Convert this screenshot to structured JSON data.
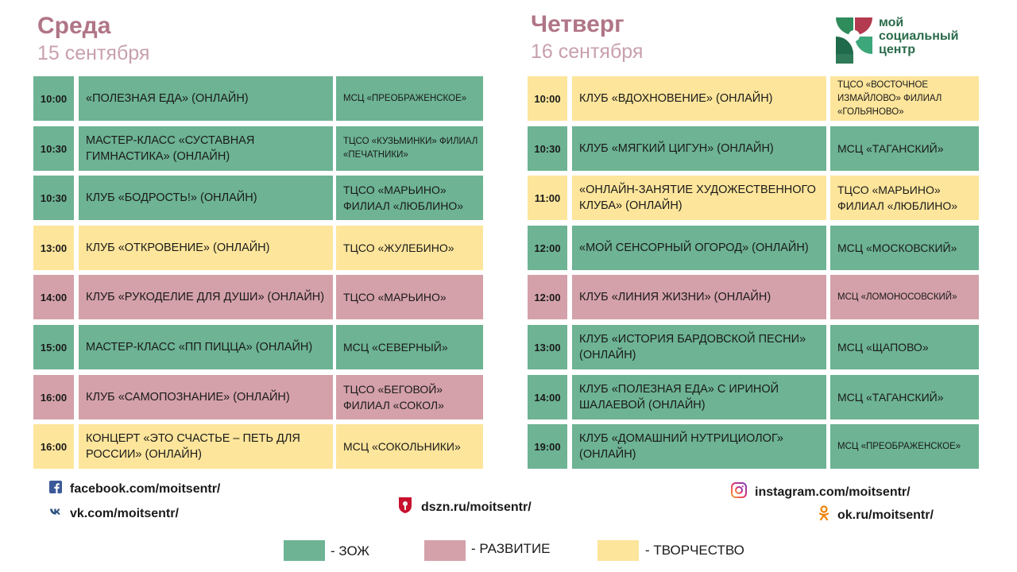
{
  "logo": {
    "line1": "мой",
    "line2": "социальный",
    "line3": "центр"
  },
  "colors": {
    "zozh": "#6db394",
    "razvitie": "#d4a1aa",
    "tvorchestvo": "#fde59b"
  },
  "days": [
    {
      "weekday": "Среда",
      "date": "15 сентября",
      "rows": [
        {
          "time": "10:00",
          "title": "«ПОЛЕЗНАЯ ЕДА» (ОНЛАЙН)",
          "place": "МСЦ «ПРЕОБРАЖЕНСКОЕ»",
          "category": "zozh",
          "small": true
        },
        {
          "time": "10:30",
          "title": "МАСТЕР-КЛАСС «СУСТАВНАЯ ГИМНАСТИКА» (ОНЛАЙН)",
          "place": "ТЦСО «КУЗЬМИНКИ» ФИЛИАЛ «ПЕЧАТНИКИ»",
          "category": "zozh",
          "small": true
        },
        {
          "time": "10:30",
          "title": "КЛУБ «БОДРОСТЬ!» (ОНЛАЙН)",
          "place": "ТЦСО «МАРЬИНО» ФИЛИАЛ «ЛЮБЛИНО»",
          "category": "zozh",
          "small": false
        },
        {
          "time": "13:00",
          "title": "КЛУБ «ОТКРОВЕНИЕ» (ОНЛАЙН)",
          "place": "ТЦСО «ЖУЛЕБИНО»",
          "category": "tvorchestvo",
          "small": false
        },
        {
          "time": "14:00",
          "title": "КЛУБ «РУКОДЕЛИЕ ДЛЯ ДУШИ» (ОНЛАЙН)",
          "place": "ТЦСО «МАРЬИНО»",
          "category": "razvitie",
          "small": false
        },
        {
          "time": "15:00",
          "title": "МАСТЕР-КЛАСС «ПП ПИЦЦА» (ОНЛАЙН)",
          "place": "МСЦ «СЕВЕРНЫЙ»",
          "category": "zozh",
          "small": false
        },
        {
          "time": "16:00",
          "title": "КЛУБ «САМОПОЗНАНИЕ» (ОНЛАЙН)",
          "place": "ТЦСО «БЕГОВОЙ» ФИЛИАЛ «СОКОЛ»",
          "category": "razvitie",
          "small": false
        },
        {
          "time": "16:00",
          "title": "КОНЦЕРТ «ЭТО СЧАСТЬЕ – ПЕТЬ ДЛЯ РОССИИ» (ОНЛАЙН)",
          "place": "МСЦ «СОКОЛЬНИКИ»",
          "category": "tvorchestvo",
          "small": false
        }
      ]
    },
    {
      "weekday": "Четверг",
      "date": "16 сентября",
      "rows": [
        {
          "time": "10:00",
          "title": "КЛУБ «ВДОХНОВЕНИЕ» (ОНЛАЙН)",
          "place": "ТЦСО «ВОСТОЧНОЕ ИЗМАЙЛОВО» ФИЛИАЛ «ГОЛЬЯНОВО»",
          "category": "tvorchestvo",
          "small": true
        },
        {
          "time": "10:30",
          "title": "КЛУБ «МЯГКИЙ ЦИГУН» (ОНЛАЙН)",
          "place": "МСЦ «ТАГАНСКИЙ»",
          "category": "zozh",
          "small": false
        },
        {
          "time": "11:00",
          "title": "«ОНЛАЙН-ЗАНЯТИЕ ХУДОЖЕСТВЕННОГО КЛУБА» (ОНЛАЙН)",
          "place": "ТЦСО «МАРЬИНО» ФИЛИАЛ «ЛЮБЛИНО»",
          "category": "tvorchestvo",
          "small": false
        },
        {
          "time": "12:00",
          "title": "«МОЙ СЕНСОРНЫЙ ОГОРОД» (ОНЛАЙН)",
          "place": "МСЦ «МОСКОВСКИЙ»",
          "category": "zozh",
          "small": false
        },
        {
          "time": "12:00",
          "title": "КЛУБ «ЛИНИЯ ЖИЗНИ» (ОНЛАЙН)",
          "place": "МСЦ «ЛОМОНОСОВСКИЙ»",
          "category": "razvitie",
          "small": true
        },
        {
          "time": "13:00",
          "title": "КЛУБ «ИСТОРИЯ БАРДОВСКОЙ ПЕСНИ» (ОНЛАЙН)",
          "place": "МСЦ «ЩАПОВО»",
          "category": "zozh",
          "small": false
        },
        {
          "time": "14:00",
          "title": "КЛУБ «ПОЛЕЗНАЯ ЕДА» С ИРИНОЙ ШАЛАЕВОЙ (ОНЛАЙН)",
          "place": "МСЦ «ТАГАНСКИЙ»",
          "category": "zozh",
          "small": false
        },
        {
          "time": "19:00",
          "title": "КЛУБ «ДОМАШНИЙ НУТРИЦИОЛОГ» (ОНЛАЙН)",
          "place": "МСЦ «ПРЕОБРАЖЕНСКОЕ»",
          "category": "zozh",
          "small": true
        }
      ]
    }
  ],
  "social": {
    "facebook": "facebook.com/moitsentr/",
    "vk": "vk.com/moitsentr/",
    "dszn": "dszn.ru/moitsentr/",
    "instagram": "instagram.com/moitsentr/",
    "ok": "ok.ru/moitsentr/"
  },
  "legend": {
    "zozh": "- ЗОЖ",
    "razvitie": "- РАЗВИТИЕ",
    "tvorchestvo": "- ТВОРЧЕСТВО"
  }
}
